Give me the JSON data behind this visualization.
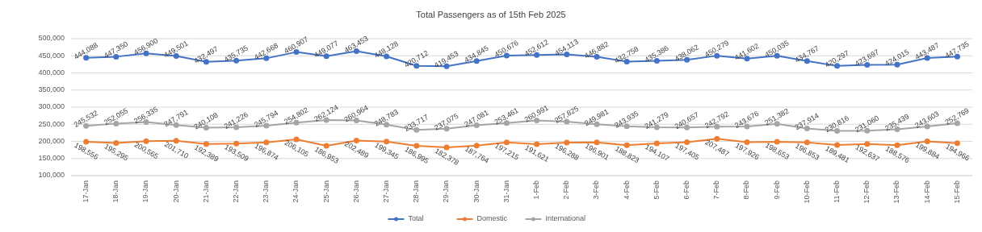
{
  "chart_data": {
    "type": "line",
    "title": "Total Passengers as of 15th Feb 2025",
    "categories": [
      "17-Jan",
      "18-Jan",
      "19-Jan",
      "20-Jan",
      "21-Jan",
      "22-Jan",
      "23-Jan",
      "24-Jan",
      "25-Jan",
      "26-Jan",
      "27-Jan",
      "28-Jan",
      "29-Jan",
      "30-Jan",
      "31-Jan",
      "1-Feb",
      "2-Feb",
      "3-Feb",
      "4-Feb",
      "5-Feb",
      "6-Feb",
      "7-Feb",
      "8-Feb",
      "9-Feb",
      "10-Feb",
      "11-Feb",
      "12-Feb",
      "13-Feb",
      "14-Feb",
      "15-Feb"
    ],
    "series": [
      {
        "name": "Total",
        "color": "#4472c4",
        "values": [
          444088,
          447350,
          456900,
          449501,
          432497,
          435735,
          442668,
          460907,
          449077,
          463453,
          448128,
          420712,
          419453,
          434845,
          450676,
          452612,
          454113,
          446882,
          432758,
          435386,
          438062,
          450279,
          441602,
          450035,
          434767,
          420297,
          423697,
          424015,
          443487,
          447735
        ],
        "value_labels": [
          "444,088",
          "447,350",
          "456,900",
          "449,501",
          "432,497",
          "435,735",
          "442,668",
          "460,907",
          "449,077",
          "463,453",
          "448,128",
          "420,712",
          "419,453",
          "434,845",
          "450,676",
          "452,612",
          "454,113",
          "446,882",
          "432,758",
          "435,386",
          "438,062",
          "450,279",
          "441,602",
          "450,035",
          "434,767",
          "420,297",
          "423,697",
          "424,015",
          "443,487",
          "447,735"
        ]
      },
      {
        "name": "Domestic",
        "color": "#ed7d31",
        "values": [
          198556,
          195295,
          200565,
          201710,
          192389,
          193509,
          196874,
          206105,
          186953,
          202489,
          199345,
          186995,
          182378,
          187764,
          197215,
          191621,
          196288,
          196901,
          188823,
          194107,
          197405,
          207487,
          197926,
          198653,
          196853,
          189481,
          192637,
          188576,
          199884,
          194966
        ],
        "value_labels": [
          "198,556",
          "195,295",
          "200,565",
          "201,710",
          "192,389",
          "193,509",
          "196,874",
          "206,105",
          "186,953",
          "202,489",
          "199,345",
          "186,995",
          "182,378",
          "187,764",
          "197,215",
          "191,621",
          "196,288",
          "196,901",
          "188,823",
          "194,107",
          "197,405",
          "207,487",
          "197,926",
          "198,653",
          "196,853",
          "189,481",
          "192,637",
          "188,576",
          "199,884",
          "194,966"
        ]
      },
      {
        "name": "International",
        "color": "#a5a5a5",
        "values": [
          245532,
          252055,
          256335,
          247791,
          240108,
          241226,
          245794,
          254802,
          262124,
          260964,
          248783,
          233717,
          237075,
          247081,
          253461,
          260991,
          257825,
          249981,
          243935,
          241279,
          240657,
          242792,
          243676,
          251382,
          237914,
          230816,
          231060,
          235439,
          243603,
          252769
        ],
        "value_labels": [
          "245,532",
          "252,055",
          "256,335",
          "247,791",
          "240,108",
          "241,226",
          "245,794",
          "254,802",
          "262,124",
          "260,964",
          "248,783",
          "233,717",
          "237,075",
          "247,081",
          "253,461",
          "260,991",
          "257,825",
          "249,981",
          "243,935",
          "241,279",
          "240,657",
          "242,792",
          "243,676",
          "251,382",
          "237,914",
          "230,816",
          "231,060",
          "235,439",
          "243,603",
          "252,769"
        ]
      }
    ],
    "ylim": [
      100000,
      500000
    ],
    "yticks": [
      {
        "value": 100000,
        "label": "100,000"
      },
      {
        "value": 150000,
        "label": "150,000"
      },
      {
        "value": 200000,
        "label": "200,000"
      },
      {
        "value": 250000,
        "label": "250,000"
      },
      {
        "value": 300000,
        "label": "300,000"
      },
      {
        "value": 350000,
        "label": "350,000"
      },
      {
        "value": 400000,
        "label": "400,000"
      },
      {
        "value": 450000,
        "label": "450,000"
      },
      {
        "value": 500000,
        "label": "500,000"
      }
    ],
    "grid": "y",
    "legend": "bottom",
    "marker": "circle",
    "line_style": "solid"
  }
}
